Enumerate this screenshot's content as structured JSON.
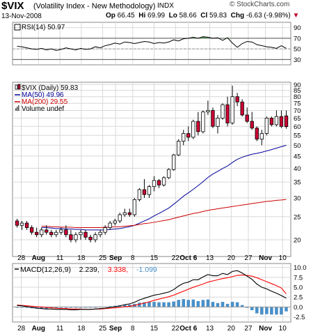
{
  "header": {
    "symbol": "$VIX",
    "name": "(Volatility Index - New Methodology)",
    "exchange": "INDX",
    "date": "13-Nov-2008",
    "brand": "© StockCharts.com",
    "quote": {
      "op_label": "Op",
      "op": "66.45",
      "hi_label": "Hi",
      "hi": "69.99",
      "lo_label": "Lo",
      "lo": "58.66",
      "cl_label": "Cl",
      "cl": "59.83",
      "chg_label": "Chg",
      "chg": "-6.63 (-9.98%)"
    }
  },
  "colors": {
    "up": "#ffffff",
    "down": "#cc0033",
    "ma50": "#000099",
    "ma200": "#cc0000",
    "macd": "#000000",
    "signal": "#ff0000",
    "hist": "#4a90c8",
    "rsi": "#000000",
    "rsi_fill": "#5a9a5a",
    "grid": "#d8d8d8"
  },
  "chart_data": [
    {
      "type": "line",
      "panel": "rsi",
      "legend": "RSI(14) 50.97",
      "ylim": [
        20,
        100
      ],
      "yticks": [
        30,
        50,
        70,
        90
      ],
      "reference_lines": [
        30,
        50,
        70
      ],
      "values": [
        55,
        54,
        52,
        50,
        49,
        51,
        48,
        50,
        47,
        49,
        52,
        50,
        48,
        51,
        49,
        50,
        54,
        52,
        56,
        58,
        61,
        59,
        63,
        62,
        60,
        62,
        64,
        63,
        60,
        62,
        61,
        63,
        67,
        65,
        69,
        70,
        72,
        70,
        73,
        72,
        70,
        71,
        66,
        71,
        61,
        53,
        60,
        64,
        63,
        58,
        56,
        54,
        53,
        51,
        56,
        51
      ]
    },
    {
      "type": "candlestick",
      "panel": "price",
      "legend": [
        {
          "label": "$VIX (Daily) 59.83",
          "icon": "candle-icon"
        },
        {
          "label": "MA(50) 49.96",
          "color": "#000099"
        },
        {
          "label": "MA(200) 29.55",
          "color": "#cc0000"
        },
        {
          "label": "Volume undef",
          "icon": "volume-icon"
        }
      ],
      "scale": "log",
      "ylim": [
        17,
        92
      ],
      "yticks": [
        20,
        25,
        30,
        35,
        40,
        45,
        50,
        55,
        60,
        65,
        70,
        75,
        80,
        85,
        90
      ],
      "x_tick_labels": [
        "28",
        "Aug",
        "11",
        "18",
        "25",
        "Sep",
        "8",
        "15",
        "22",
        "Oct 6",
        "13",
        "20",
        "27",
        "Nov",
        "10"
      ],
      "ohlc": [
        [
          24,
          24.5,
          22.5,
          23
        ],
        [
          23,
          24,
          22,
          23.5
        ],
        [
          23.5,
          24,
          22,
          22.5
        ],
        [
          22.5,
          23,
          21,
          21.5
        ],
        [
          21.5,
          22.5,
          20.5,
          21
        ],
        [
          21,
          22.5,
          20.5,
          22
        ],
        [
          22,
          23,
          21,
          21.5
        ],
        [
          21.5,
          22,
          20.5,
          21
        ],
        [
          21,
          22,
          20.5,
          21.5
        ],
        [
          21.5,
          22.5,
          21,
          22
        ],
        [
          22,
          23,
          20.5,
          21
        ],
        [
          21,
          22,
          19.5,
          20
        ],
        [
          20,
          21.5,
          19.5,
          21
        ],
        [
          21,
          22,
          20,
          21.5
        ],
        [
          21.5,
          22,
          20,
          20.5
        ],
        [
          20.5,
          21,
          19.5,
          20
        ],
        [
          20,
          21.5,
          19.5,
          21
        ],
        [
          21,
          22,
          20.5,
          21.5
        ],
        [
          21.5,
          23,
          21,
          22.5
        ],
        [
          22.5,
          24,
          22,
          23.5
        ],
        [
          23.5,
          24.5,
          23,
          24
        ],
        [
          24,
          26,
          23.5,
          25.5
        ],
        [
          25.5,
          27,
          25,
          26
        ],
        [
          26,
          27,
          25,
          25.5
        ],
        [
          25.5,
          30,
          25,
          29.5
        ],
        [
          29.5,
          33,
          29,
          32.5
        ],
        [
          32.5,
          36,
          30,
          31
        ],
        [
          31,
          34,
          30,
          33.5
        ],
        [
          33.5,
          37,
          32,
          35.5
        ],
        [
          35.5,
          36,
          33,
          34
        ],
        [
          34,
          37,
          33.5,
          36.5
        ],
        [
          36.5,
          40,
          36,
          39.5
        ],
        [
          39.5,
          46,
          39,
          45.5
        ],
        [
          45.5,
          53,
          45,
          52
        ],
        [
          52,
          58,
          50,
          56
        ],
        [
          56,
          60,
          52,
          54
        ],
        [
          54,
          64,
          53,
          63
        ],
        [
          63,
          69,
          55,
          57
        ],
        [
          57,
          70,
          56,
          69
        ],
        [
          69,
          77,
          67,
          70
        ],
        [
          70,
          72,
          59,
          60
        ],
        [
          60,
          67,
          56,
          65
        ],
        [
          65,
          75,
          64,
          74
        ],
        [
          74,
          80,
          60,
          62
        ],
        [
          62,
          89,
          61,
          80
        ],
        [
          80,
          83,
          73,
          76
        ],
        [
          76,
          78,
          66,
          67
        ],
        [
          67,
          72,
          62,
          63
        ],
        [
          63,
          69,
          58,
          59
        ],
        [
          59,
          60,
          52,
          53
        ],
        [
          53,
          58,
          50,
          56
        ],
        [
          56,
          66,
          55,
          65
        ],
        [
          65,
          66,
          60,
          61
        ],
        [
          61,
          70,
          60,
          66
        ],
        [
          66,
          70,
          59,
          60
        ],
        [
          66.45,
          69.99,
          58.66,
          59.83
        ]
      ],
      "series": [
        {
          "name": "MA(50)",
          "values": [
            null,
            null,
            null,
            null,
            null,
            22.5,
            22.5,
            22.4,
            22.3,
            22.3,
            22.2,
            22.2,
            22.1,
            22.1,
            22.0,
            22.0,
            22.0,
            22.0,
            22.0,
            22.1,
            22.2,
            22.3,
            22.5,
            22.7,
            23.0,
            23.5,
            24.0,
            24.5,
            25.2,
            25.8,
            26.5,
            27.2,
            28.2,
            29.3,
            30.5,
            31.5,
            32.6,
            33.8,
            35.1,
            36.6,
            37.8,
            38.8,
            39.9,
            40.9,
            42.3,
            43.6,
            44.5,
            45.2,
            45.8,
            46.2,
            46.7,
            47.3,
            47.9,
            48.6,
            49.3,
            49.96
          ]
        },
        {
          "name": "MA(200)",
          "values": [
            null,
            null,
            null,
            null,
            null,
            22.8,
            22.8,
            22.7,
            22.7,
            22.6,
            22.6,
            22.6,
            22.5,
            22.5,
            22.5,
            22.5,
            22.5,
            22.5,
            22.6,
            22.6,
            22.7,
            22.7,
            22.8,
            22.9,
            23.0,
            23.2,
            23.4,
            23.5,
            23.7,
            23.9,
            24.1,
            24.3,
            24.6,
            24.9,
            25.2,
            25.5,
            25.8,
            26.0,
            26.3,
            26.6,
            26.8,
            27.0,
            27.2,
            27.4,
            27.6,
            27.8,
            28.0,
            28.2,
            28.4,
            28.6,
            28.8,
            29.0,
            29.1,
            29.3,
            29.4,
            29.55
          ]
        }
      ]
    },
    {
      "type": "line",
      "panel": "macd",
      "legend": [
        {
          "label": "MACD(12,26,9)",
          "color": "#000000"
        },
        {
          "label": "2.239,",
          "color": "#000000"
        },
        {
          "label": "3.338,",
          "color": "#ff0000"
        },
        {
          "label": "-1.099",
          "color": "#4a90c8"
        }
      ],
      "ylim": [
        -3.8,
        11
      ],
      "yticks": [
        -2.5,
        0.0,
        2.5,
        5.0,
        7.5,
        10.0
      ],
      "x_tick_labels": [
        "28",
        "Aug",
        "11",
        "18",
        "25",
        "Sep",
        "8",
        "15",
        "22",
        "Oct 6",
        "13",
        "20",
        "27",
        "Nov",
        "10"
      ],
      "series": [
        {
          "name": "MACD",
          "values": [
            0.4,
            0.3,
            0.1,
            -0.1,
            -0.3,
            -0.4,
            -0.5,
            -0.5,
            -0.6,
            -0.6,
            -0.6,
            -0.7,
            -0.7,
            -0.6,
            -0.6,
            -0.6,
            -0.5,
            -0.4,
            -0.3,
            -0.1,
            0.1,
            0.3,
            0.6,
            0.8,
            1.2,
            1.8,
            2.2,
            2.6,
            3.0,
            3.2,
            3.5,
            3.8,
            4.4,
            5.3,
            6.0,
            6.3,
            6.9,
            6.9,
            7.6,
            8.2,
            7.9,
            7.9,
            8.5,
            8.2,
            9.0,
            9.2,
            8.6,
            7.8,
            7.0,
            5.8,
            5.0,
            4.6,
            4.0,
            3.5,
            2.9,
            2.239
          ]
        },
        {
          "name": "Signal",
          "values": [
            0.5,
            0.4,
            0.3,
            0.2,
            0.1,
            0.0,
            -0.1,
            -0.2,
            -0.3,
            -0.4,
            -0.4,
            -0.5,
            -0.5,
            -0.5,
            -0.6,
            -0.6,
            -0.5,
            -0.5,
            -0.4,
            -0.3,
            -0.2,
            -0.1,
            0.1,
            0.2,
            0.4,
            0.7,
            1.0,
            1.3,
            1.7,
            2.0,
            2.3,
            2.6,
            3.0,
            3.5,
            4.0,
            4.5,
            5.0,
            5.4,
            5.8,
            6.3,
            6.6,
            6.9,
            7.2,
            7.4,
            7.7,
            8.0,
            8.1,
            8.0,
            7.8,
            7.4,
            6.9,
            6.4,
            5.9,
            5.4,
            4.8,
            3.338
          ]
        },
        {
          "name": "Histogram",
          "values": [
            -0.1,
            -0.1,
            -0.2,
            -0.3,
            -0.4,
            -0.4,
            -0.4,
            -0.3,
            -0.3,
            -0.2,
            -0.2,
            -0.2,
            -0.2,
            -0.1,
            0.0,
            0.0,
            0.0,
            0.1,
            0.1,
            0.2,
            0.3,
            0.4,
            0.5,
            0.6,
            0.8,
            1.1,
            1.2,
            1.3,
            1.3,
            1.2,
            1.2,
            1.2,
            1.4,
            1.8,
            2.0,
            1.8,
            1.9,
            1.5,
            1.8,
            1.9,
            1.3,
            1.0,
            1.3,
            0.8,
            1.3,
            1.2,
            0.5,
            -0.2,
            -0.8,
            -1.6,
            -1.9,
            -1.8,
            -1.9,
            -1.9,
            -1.9,
            -1.099
          ]
        }
      ]
    }
  ]
}
